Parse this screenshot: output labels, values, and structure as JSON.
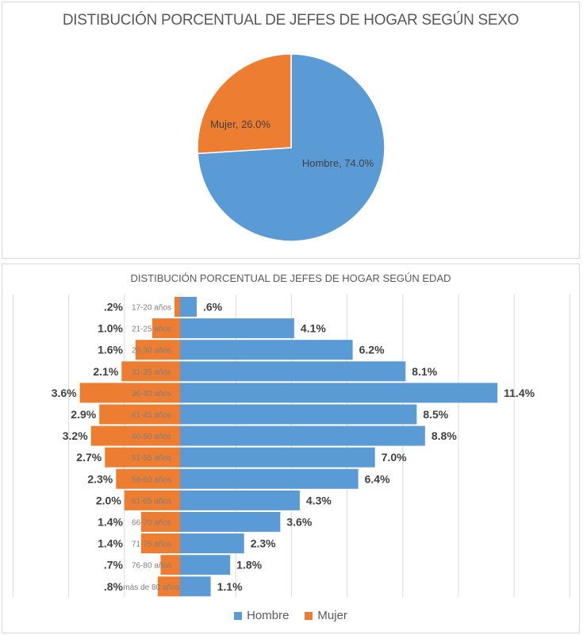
{
  "colors": {
    "hombre": "#5b9bd5",
    "mujer": "#ed7d31",
    "grid": "#d9d9d9",
    "text": "#404040",
    "category": "#7f7f7f"
  },
  "chart_data": [
    {
      "type": "pie",
      "title": "DISTIBUCIÓN PORCENTUAL DE JEFES DE HOGAR SEGÚN SEXO",
      "slices": [
        {
          "name": "Hombre",
          "value": 74.0,
          "label": "Hombre, 74.0%"
        },
        {
          "name": "Mujer",
          "value": 26.0,
          "label": "Mujer, 26.0%"
        }
      ]
    },
    {
      "type": "bar",
      "orientation": "horizontal-population-pyramid",
      "title": "DISTIBUCIÓN PORCENTUAL DE JEFES DE HOGAR SEGÚN EDAD",
      "categories": [
        "17-20 años",
        "21-25 años",
        "26-30 años",
        "31-35 años",
        "36-40 años",
        "41-45 años",
        "46-50 años",
        "51-55 años",
        "56-60 años",
        "61-65 años",
        "66-70 años",
        "71-75 años",
        "76-80 años",
        "más de 80 años"
      ],
      "series": [
        {
          "name": "Hombre",
          "values": [
            0.6,
            4.1,
            6.2,
            8.1,
            11.4,
            8.5,
            8.8,
            7.0,
            6.4,
            4.3,
            3.6,
            2.3,
            1.8,
            1.1
          ],
          "labels": [
            ".6%",
            "4.1%",
            "6.2%",
            "8.1%",
            "11.4%",
            "8.5%",
            "8.8%",
            "7.0%",
            "6.4%",
            "4.3%",
            "3.6%",
            "2.3%",
            "1.8%",
            "1.1%"
          ]
        },
        {
          "name": "Mujer",
          "values": [
            0.2,
            1.0,
            1.6,
            2.1,
            3.6,
            2.9,
            3.2,
            2.7,
            2.3,
            2.0,
            1.4,
            1.4,
            0.7,
            0.8
          ],
          "labels": [
            ".2%",
            "1.0%",
            "1.6%",
            "2.1%",
            "3.6%",
            "2.9%",
            "3.2%",
            "2.7%",
            "2.3%",
            "2.0%",
            "1.4%",
            "1.4%",
            ".7%",
            ".8%"
          ]
        }
      ],
      "xlim": [
        -6,
        14
      ],
      "grid": true,
      "legend": {
        "position": "bottom",
        "entries": [
          "Hombre",
          "Mujer"
        ]
      }
    }
  ]
}
